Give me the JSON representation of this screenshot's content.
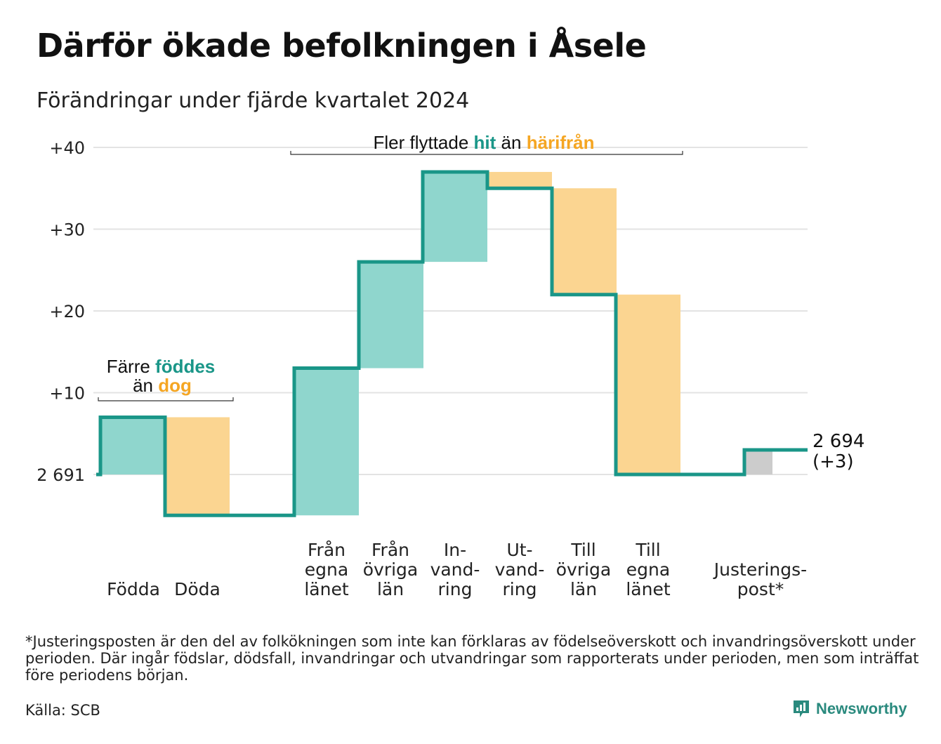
{
  "title": "Därför ökade befolkningen i Åsele",
  "subtitle": "Förändringar under fjärde kvartalet 2024",
  "colors": {
    "increase": "#8fd6cd",
    "decrease": "#fbd591",
    "adjustment": "#cccccc",
    "line": "#1a9688",
    "teal_text": "#1a9688",
    "orange_text": "#f5a623",
    "grid": "#e3e3e3",
    "brand": "#2a8a7e"
  },
  "annotations": {
    "births": {
      "line1_prefix": "Färre ",
      "line1_highlight": "föddes",
      "line2_prefix": "än ",
      "line2_highlight": "dog"
    },
    "migration": {
      "prefix": "Fler flyttade ",
      "highlight1": "hit",
      "middle": " än ",
      "highlight2": "härifrån"
    }
  },
  "chart_data": {
    "type": "waterfall",
    "title": "Därför ökade befolkningen i Åsele",
    "subtitle": "Förändringar under fjärde kvartalet 2024",
    "base_value": 2691,
    "base_label": "2 691",
    "end_label": "2 694",
    "end_change_label": "(+3)",
    "ylim": [
      -5,
      40
    ],
    "yticks": [
      {
        "value": 40,
        "label": "+40"
      },
      {
        "value": 30,
        "label": "+30"
      },
      {
        "value": 20,
        "label": "+20"
      },
      {
        "value": 10,
        "label": "+10"
      },
      {
        "value": 0,
        "label": "2 691"
      }
    ],
    "steps": [
      {
        "label": [
          "Födda"
        ],
        "from": 0,
        "to": 7,
        "kind": "increase"
      },
      {
        "label": [
          "Döda"
        ],
        "from": 7,
        "to": -5,
        "kind": "decrease"
      },
      {
        "label": [
          "Från",
          "egna",
          "länet"
        ],
        "from": -5,
        "to": 13,
        "kind": "increase"
      },
      {
        "label": [
          "Från",
          "övriga",
          "län"
        ],
        "from": 13,
        "to": 26,
        "kind": "increase"
      },
      {
        "label": [
          "In-",
          "vand-",
          "ring"
        ],
        "from": 26,
        "to": 37,
        "kind": "increase"
      },
      {
        "label": [
          "Ut-",
          "vand-",
          "ring"
        ],
        "from": 37,
        "to": 35,
        "kind": "decrease"
      },
      {
        "label": [
          "Till",
          "övriga",
          "län"
        ],
        "from": 35,
        "to": 22,
        "kind": "decrease"
      },
      {
        "label": [
          "Till",
          "egna",
          "länet"
        ],
        "from": 22,
        "to": 0,
        "kind": "decrease"
      },
      {
        "label": [
          "Justerings-",
          "post*"
        ],
        "from": 0,
        "to": 3,
        "kind": "adjustment"
      }
    ],
    "grid": true
  },
  "footnote": "*Justeringsposten är den del av folkökningen som inte kan förklaras av födelseöverskott och invandringsöverskott under perioden. Där ingår födslar, dödsfall, invandringar och utvandringar som rapporterats under perioden, men som inträffat före periodens början.",
  "source": "Källa: SCB",
  "brand": {
    "name": "Newsworthy",
    "icon": "newsworthy-logo-icon"
  }
}
